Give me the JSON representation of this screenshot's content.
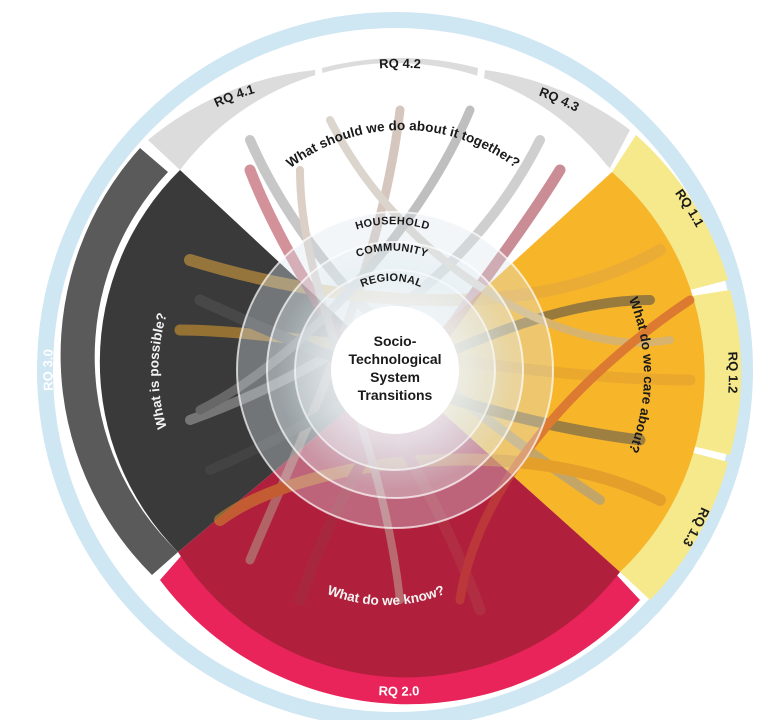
{
  "research_questions": [
    {
      "id": "rq41",
      "label": "RQ 4.1",
      "color": "#dcdcdc",
      "text_color": "#1a1a1a"
    },
    {
      "id": "rq42",
      "label": "RQ 4.2",
      "color": "#dcdcdc",
      "text_color": "#1a1a1a"
    },
    {
      "id": "rq43",
      "label": "RQ 4.3",
      "color": "#dcdcdc",
      "text_color": "#1a1a1a"
    },
    {
      "id": "rq11",
      "label": "RQ 1.1",
      "color": "#f5e98c",
      "text_color": "#1a1a1a"
    },
    {
      "id": "rq12",
      "label": "RQ 1.2",
      "color": "#f5e98c",
      "text_color": "#1a1a1a"
    },
    {
      "id": "rq13",
      "label": "RQ 1.3",
      "color": "#f5e98c",
      "text_color": "#1a1a1a"
    },
    {
      "id": "rq20",
      "label": "RQ 2.0",
      "color": "#e8245a",
      "text_color": "#ffffff"
    },
    {
      "id": "rq30",
      "label": "RQ 3.0",
      "color": "#5a5a5a",
      "text_color": "#ffffff"
    }
  ],
  "questions": {
    "together": "What should we do about it together?",
    "care": "What do we care about?",
    "know": "What do we know?",
    "possible": "What is possible?"
  },
  "levels": {
    "household": "HOUSEHOLD",
    "community": "COMMUNITY",
    "regional": "REGIONAL"
  },
  "center": {
    "line1": "Socio-",
    "line2": "Technological",
    "line3": "System",
    "line4": "Transitions"
  },
  "colors": {
    "outer_ring": "#cfe6f3",
    "together": "#ffffff",
    "care": "#f7b52a",
    "know": "#b0203c",
    "possible": "#3a3a3a",
    "center": "#ffffff"
  }
}
